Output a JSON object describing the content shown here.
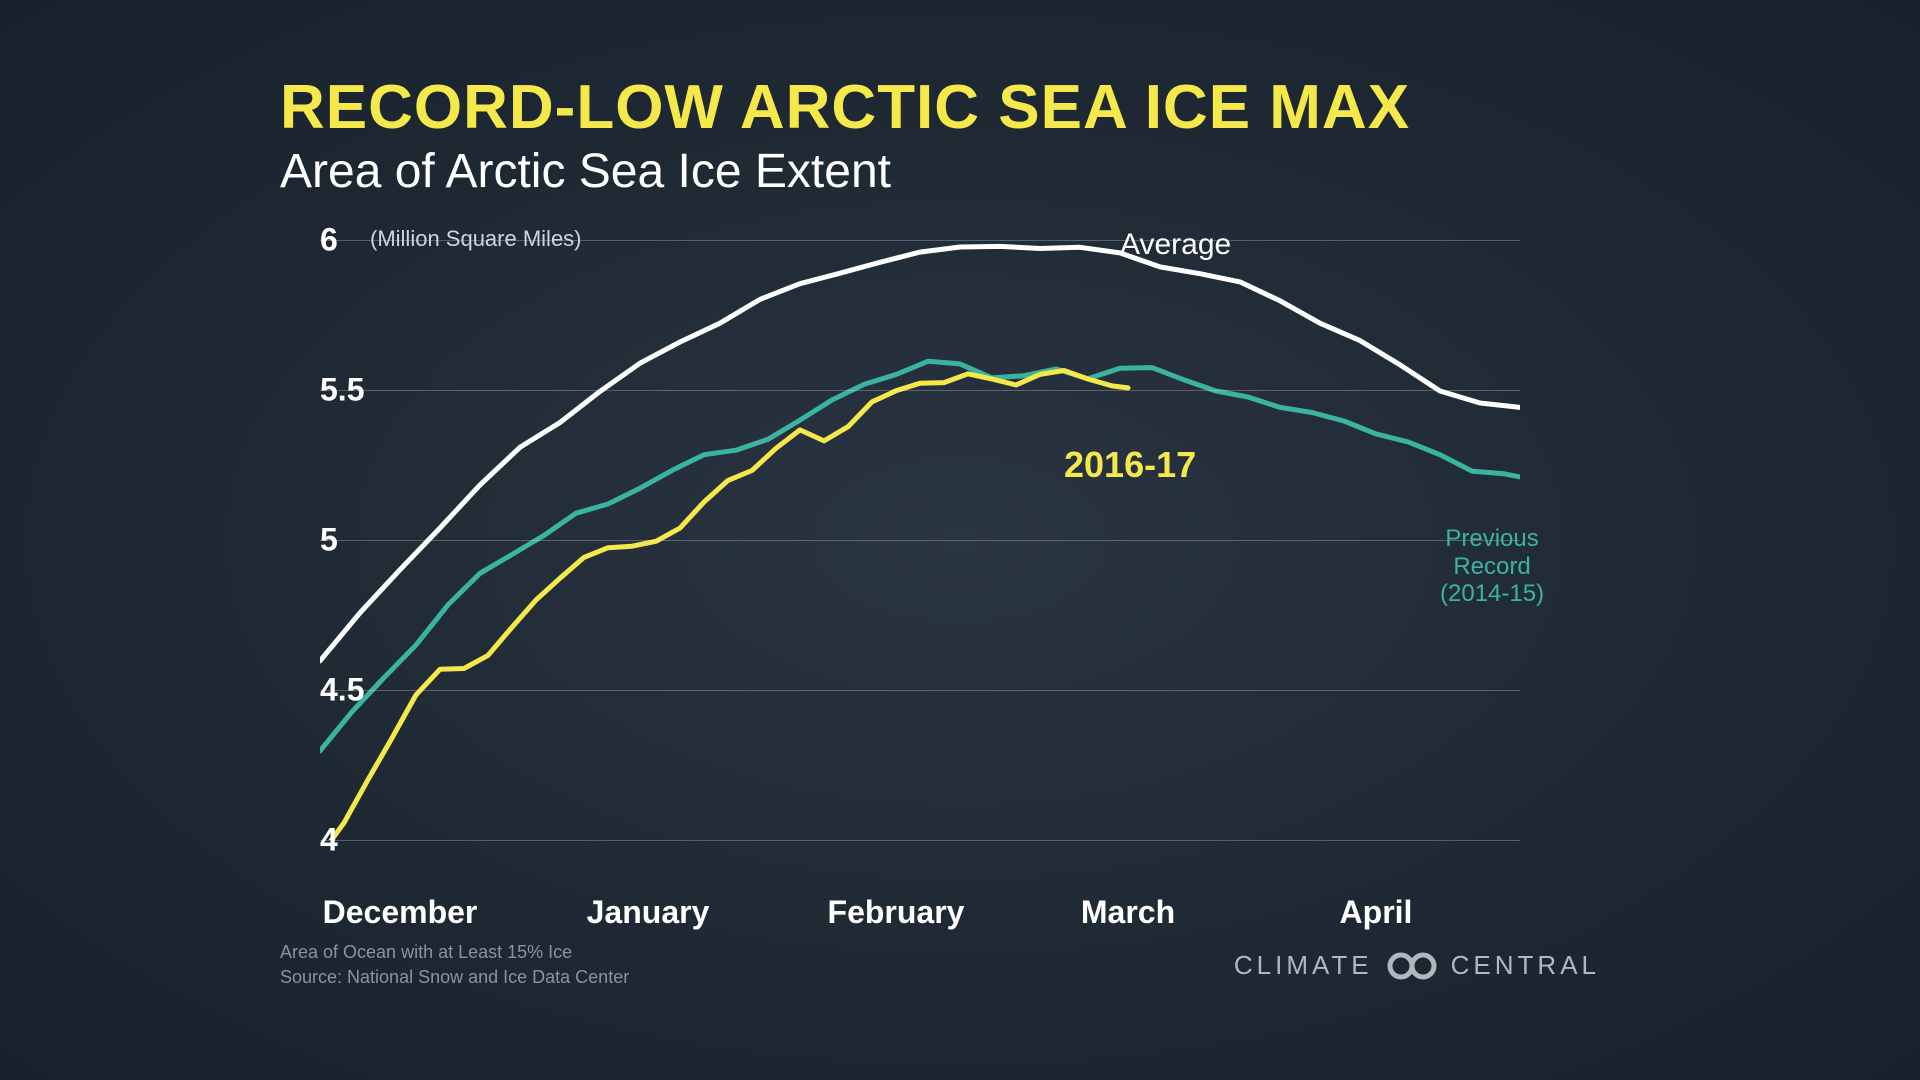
{
  "header": {
    "title": "RECORD-LOW ARCTIC SEA ICE MAX",
    "subtitle": "Area of Arctic Sea Ice Extent"
  },
  "chart": {
    "type": "line",
    "unit_label": "(Million Square Miles)",
    "ylim": [
      4,
      6
    ],
    "yticks": [
      4,
      4.5,
      5,
      5.5,
      6
    ],
    "ytick_labels": [
      "4",
      "4.5",
      "5",
      "5.5",
      "6"
    ],
    "xlim": [
      0,
      150
    ],
    "xticks": [
      10,
      41,
      72,
      101,
      132
    ],
    "xtick_labels": [
      "December",
      "January",
      "February",
      "March",
      "April"
    ],
    "background_color": "#1e2832",
    "grid_color": "rgba(255,255,255,0.25)",
    "ytick_fontsize": 32,
    "xtick_fontsize": 32,
    "line_width": 5,
    "series": [
      {
        "name": "Average",
        "color": "#ffffff",
        "label": "Average",
        "label_color": "#ffffff",
        "label_fontsize": 30,
        "label_pos": {
          "x": 100,
          "y": 6.04
        },
        "data": [
          [
            0,
            4.6
          ],
          [
            5,
            4.75
          ],
          [
            10,
            4.9
          ],
          [
            15,
            5.05
          ],
          [
            20,
            5.18
          ],
          [
            25,
            5.3
          ],
          [
            30,
            5.4
          ],
          [
            35,
            5.5
          ],
          [
            40,
            5.58
          ],
          [
            45,
            5.66
          ],
          [
            50,
            5.73
          ],
          [
            55,
            5.8
          ],
          [
            60,
            5.85
          ],
          [
            65,
            5.89
          ],
          [
            70,
            5.93
          ],
          [
            75,
            5.96
          ],
          [
            80,
            5.97
          ],
          [
            85,
            5.98
          ],
          [
            90,
            5.98
          ],
          [
            95,
            5.97
          ],
          [
            100,
            5.95
          ],
          [
            105,
            5.92
          ],
          [
            110,
            5.89
          ],
          [
            115,
            5.85
          ],
          [
            120,
            5.8
          ],
          [
            125,
            5.73
          ],
          [
            130,
            5.66
          ],
          [
            135,
            5.58
          ],
          [
            140,
            5.5
          ],
          [
            145,
            5.46
          ],
          [
            150,
            5.44
          ]
        ]
      },
      {
        "name": "Previous Record",
        "color": "#3bb3a1",
        "label": "Previous\nRecord\n(2014-15)",
        "label_color": "#3bb3a1",
        "label_fontsize": 24,
        "label_pos": {
          "x": 140,
          "y": 5.05
        },
        "data": [
          [
            0,
            4.3
          ],
          [
            4,
            4.42
          ],
          [
            8,
            4.54
          ],
          [
            12,
            4.66
          ],
          [
            16,
            4.78
          ],
          [
            20,
            4.88
          ],
          [
            24,
            4.96
          ],
          [
            28,
            5.02
          ],
          [
            32,
            5.08
          ],
          [
            36,
            5.12
          ],
          [
            40,
            5.18
          ],
          [
            44,
            5.23
          ],
          [
            48,
            5.28
          ],
          [
            52,
            5.3
          ],
          [
            56,
            5.34
          ],
          [
            60,
            5.4
          ],
          [
            64,
            5.46
          ],
          [
            68,
            5.52
          ],
          [
            72,
            5.56
          ],
          [
            76,
            5.59
          ],
          [
            80,
            5.58
          ],
          [
            84,
            5.55
          ],
          [
            88,
            5.55
          ],
          [
            92,
            5.56
          ],
          [
            96,
            5.54
          ],
          [
            100,
            5.58
          ],
          [
            104,
            5.57
          ],
          [
            108,
            5.53
          ],
          [
            112,
            5.5
          ],
          [
            116,
            5.48
          ],
          [
            120,
            5.44
          ],
          [
            124,
            5.42
          ],
          [
            128,
            5.4
          ],
          [
            132,
            5.36
          ],
          [
            136,
            5.32
          ],
          [
            140,
            5.28
          ],
          [
            144,
            5.24
          ],
          [
            148,
            5.22
          ],
          [
            150,
            5.2
          ]
        ]
      },
      {
        "name": "2016-17",
        "color": "#f5e84a",
        "label": "2016-17",
        "label_color": "#f5e84a",
        "label_fontsize": 36,
        "label_pos": {
          "x": 93,
          "y": 5.32
        },
        "data": [
          [
            0,
            3.95
          ],
          [
            3,
            4.05
          ],
          [
            6,
            4.2
          ],
          [
            9,
            4.35
          ],
          [
            12,
            4.48
          ],
          [
            15,
            4.56
          ],
          [
            18,
            4.58
          ],
          [
            21,
            4.62
          ],
          [
            24,
            4.7
          ],
          [
            27,
            4.8
          ],
          [
            30,
            4.88
          ],
          [
            33,
            4.94
          ],
          [
            36,
            4.97
          ],
          [
            39,
            4.98
          ],
          [
            42,
            5.0
          ],
          [
            45,
            5.04
          ],
          [
            48,
            5.12
          ],
          [
            51,
            5.2
          ],
          [
            54,
            5.24
          ],
          [
            57,
            5.3
          ],
          [
            60,
            5.36
          ],
          [
            63,
            5.34
          ],
          [
            66,
            5.38
          ],
          [
            69,
            5.45
          ],
          [
            72,
            5.5
          ],
          [
            75,
            5.53
          ],
          [
            78,
            5.52
          ],
          [
            81,
            5.55
          ],
          [
            84,
            5.54
          ],
          [
            87,
            5.52
          ],
          [
            90,
            5.55
          ],
          [
            93,
            5.56
          ],
          [
            96,
            5.54
          ],
          [
            99,
            5.52
          ],
          [
            101,
            5.5
          ]
        ]
      }
    ]
  },
  "footnote": {
    "line1": "Area of Ocean with at Least 15% Ice",
    "line2": "Source: National Snow and Ice Data Center"
  },
  "brand": {
    "left": "CLIMATE",
    "right": "CENTRAL",
    "logo_color": "#b0b8bf"
  }
}
